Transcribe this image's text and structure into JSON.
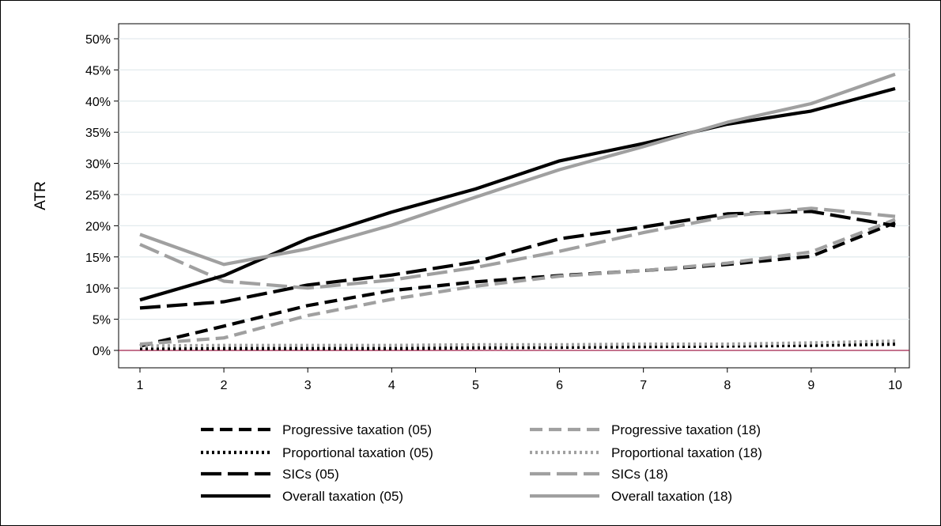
{
  "chart_data": {
    "type": "line",
    "title": "",
    "xlabel": "",
    "ylabel": "ATR",
    "x": [
      1,
      2,
      3,
      4,
      5,
      6,
      7,
      8,
      9,
      10
    ],
    "xlim": [
      1,
      10
    ],
    "ylim": [
      0,
      50
    ],
    "y_ticks": [
      "0%",
      "5%",
      "10%",
      "15%",
      "20%",
      "25%",
      "30%",
      "35%",
      "40%",
      "45%",
      "50%"
    ],
    "x_ticks": [
      "1",
      "2",
      "3",
      "4",
      "5",
      "6",
      "7",
      "8",
      "9",
      "10"
    ],
    "grid": "horizontal",
    "legend_position": "bottom",
    "reference_line": {
      "y": 0,
      "color": "#a0204a"
    },
    "series": [
      {
        "name": "Progressive taxation (05)",
        "color": "#000000",
        "dash": "dashed",
        "values": [
          0.7,
          3.9,
          7.2,
          9.6,
          11.0,
          12.0,
          12.8,
          13.8,
          15.1,
          20.5
        ]
      },
      {
        "name": "Progressive taxation (18)",
        "color": "#a0a0a0",
        "dash": "dashed",
        "values": [
          1.0,
          2.0,
          5.6,
          8.2,
          10.3,
          11.9,
          12.8,
          14.0,
          15.8,
          21.0
        ]
      },
      {
        "name": "Proportional taxation (05)",
        "color": "#000000",
        "dash": "dotted",
        "values": [
          0.3,
          0.3,
          0.3,
          0.3,
          0.4,
          0.5,
          0.6,
          0.7,
          0.8,
          1.0
        ]
      },
      {
        "name": "Proportional taxation (18)",
        "color": "#a0a0a0",
        "dash": "dotted",
        "values": [
          0.7,
          0.8,
          0.8,
          0.8,
          0.9,
          0.9,
          1.0,
          1.0,
          1.2,
          1.5
        ]
      },
      {
        "name": "SICs (05)",
        "color": "#000000",
        "dash": "longdash",
        "values": [
          6.8,
          7.8,
          10.5,
          12.1,
          14.2,
          17.9,
          19.8,
          21.9,
          22.3,
          20.0
        ]
      },
      {
        "name": "SICs (18)",
        "color": "#a0a0a0",
        "dash": "longdash",
        "values": [
          17.0,
          11.1,
          10.0,
          11.3,
          13.3,
          15.9,
          18.9,
          21.5,
          22.8,
          21.5
        ]
      },
      {
        "name": "Overall taxation (05)",
        "color": "#000000",
        "dash": "solid",
        "values": [
          8.1,
          12.0,
          17.9,
          22.2,
          25.9,
          30.4,
          33.2,
          36.3,
          38.4,
          42.0
        ]
      },
      {
        "name": "Overall taxation (18)",
        "color": "#a0a0a0",
        "dash": "solid",
        "values": [
          18.6,
          13.8,
          16.3,
          20.1,
          24.6,
          29.0,
          32.7,
          36.6,
          39.6,
          44.3
        ]
      }
    ]
  }
}
